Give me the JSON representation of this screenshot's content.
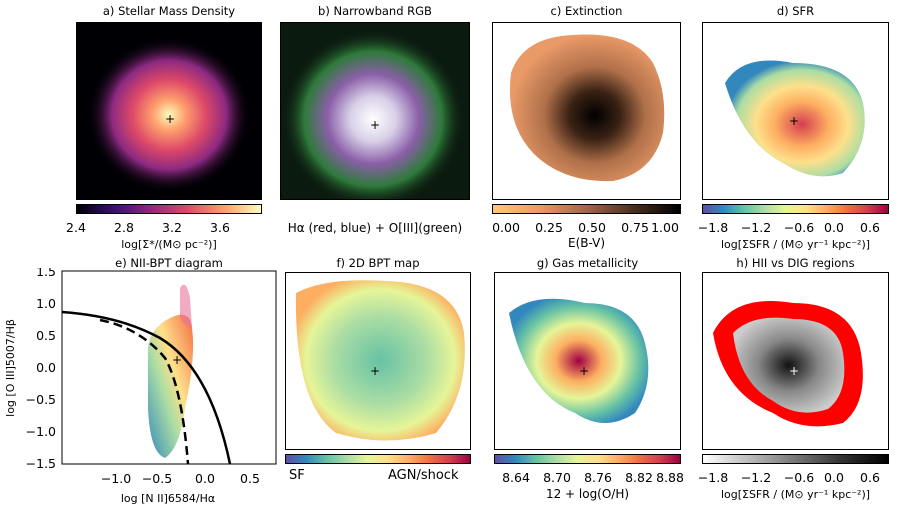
{
  "panels": {
    "a": {
      "title": "a) Stellar Mass Density",
      "cbar_ticks": [
        "2.4",
        "2.8",
        "3.2",
        "3.6"
      ],
      "cbar_label": "log[Σ*/(M⊙ pc⁻²)]"
    },
    "b": {
      "title": "b) Narrowband RGB",
      "caption": "Hα (red, blue) + O[III](green)"
    },
    "c": {
      "title": "c) Extinction",
      "cbar_ticks": [
        "0.00",
        "0.25",
        "0.50",
        "0.75",
        "1.00"
      ],
      "cbar_label": "E(B-V)"
    },
    "d": {
      "title": "d) SFR",
      "cbar_ticks": [
        "−1.8",
        "−1.2",
        "−0.6",
        "0.0",
        "0.6"
      ],
      "cbar_label": "log[ΣSFR / (M⊙ yr⁻¹ kpc⁻²)]"
    },
    "e": {
      "title": "e) NII-BPT diagram",
      "xlabel": "log [N II]6584/Hα",
      "ylabel": "log [O III]5007/Hβ",
      "xticks": [
        "−1.0",
        "−0.5",
        "0.0",
        "0.5"
      ],
      "yticks": [
        "1.5",
        "1.0",
        "0.5",
        "0.0",
        "−0.5",
        "−1.0",
        "−1.5"
      ]
    },
    "f": {
      "title": "f) 2D BPT map",
      "cbar_left": "SF",
      "cbar_right": "AGN/shock"
    },
    "g": {
      "title": "g) Gas metallicity",
      "cbar_ticks": [
        "8.64",
        "8.70",
        "8.76",
        "8.82",
        "8.88"
      ],
      "cbar_label": "12 + log(O/H)"
    },
    "h": {
      "title": "h) HII vs DIG regions",
      "cbar_ticks": [
        "−1.8",
        "−1.2",
        "−0.6",
        "0.0",
        "0.6"
      ],
      "cbar_label": "log[ΣSFR / (M⊙ yr⁻¹ kpc⁻²)]"
    }
  },
  "colors": {
    "magma": "#fcfdbf",
    "copper": "#e99a67",
    "spectral_mid": "#fdf9b9",
    "sf_red": "#d53e4f",
    "dig_red": "#ff0000"
  }
}
